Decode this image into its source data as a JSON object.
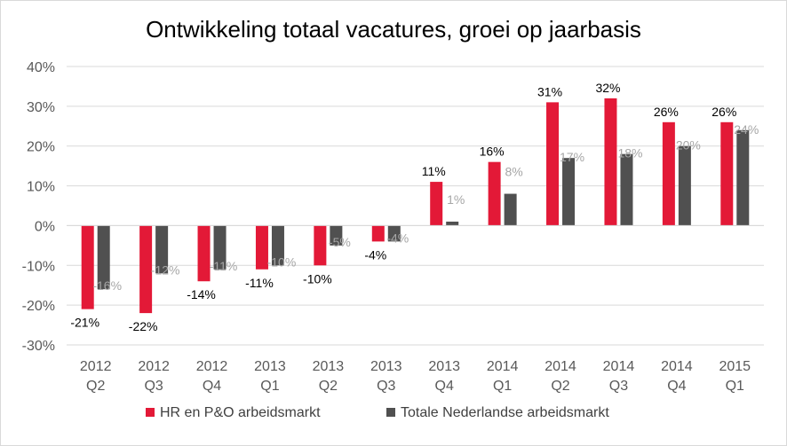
{
  "chart_data": {
    "type": "bar",
    "title": "Ontwikkeling totaal vacatures, groei op jaarbasis",
    "categories": [
      [
        "2012",
        "Q2"
      ],
      [
        "2012",
        "Q3"
      ],
      [
        "2012",
        "Q4"
      ],
      [
        "2013",
        "Q1"
      ],
      [
        "2013",
        "Q2"
      ],
      [
        "2013",
        "Q3"
      ],
      [
        "2013",
        "Q4"
      ],
      [
        "2014",
        "Q1"
      ],
      [
        "2014",
        "Q2"
      ],
      [
        "2014",
        "Q3"
      ],
      [
        "2014",
        "Q4"
      ],
      [
        "2015",
        "Q1"
      ]
    ],
    "series": [
      {
        "name": "HR en P&O arbeidsmarkt",
        "color": "#e31937",
        "values": [
          -21,
          -22,
          -14,
          -11,
          -10,
          -4,
          11,
          16,
          31,
          32,
          26,
          26
        ],
        "value_labels": [
          "-21%",
          "-22%",
          "-14%",
          "-11%",
          "-10%",
          "-4%",
          "11%",
          "16%",
          "31%",
          "32%",
          "26%",
          "26%"
        ],
        "label_color": "#000000"
      },
      {
        "name": "Totale Nederlandse arbeidsmarkt",
        "color": "#505050",
        "values": [
          -16,
          -12,
          -11,
          -10,
          -5,
          -4,
          1,
          8,
          17,
          18,
          20,
          24
        ],
        "value_labels": [
          "-16%",
          "-12%",
          "-11%",
          "-10%",
          "-5%",
          "-4%",
          "1%",
          "8%",
          "17%",
          "18%",
          "20%",
          "24%"
        ],
        "label_color": "#a6a6a6"
      }
    ],
    "ylim": [
      -30,
      40
    ],
    "yticks": [
      "40%",
      "30%",
      "20%",
      "10%",
      "0%",
      "-10%",
      "-20%",
      "-30%"
    ],
    "ytick_values": [
      40,
      30,
      20,
      10,
      0,
      -10,
      -20,
      -30
    ],
    "grid": true,
    "legend_position": "bottom"
  }
}
